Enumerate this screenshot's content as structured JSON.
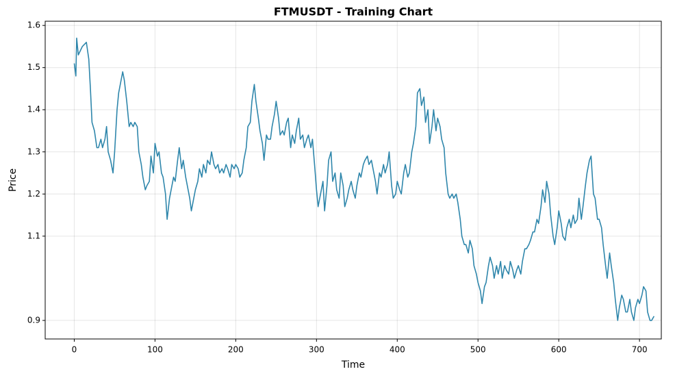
{
  "chart_data": {
    "type": "line",
    "title": "FTMUSDT - Training Chart",
    "x_label": "Time",
    "y_label": "Price",
    "color": "#2e86ab",
    "grid": true,
    "xlim": [
      -36,
      727
    ],
    "ylim": [
      0.856,
      1.61
    ],
    "xticks": [
      0,
      100,
      200,
      300,
      400,
      500,
      600,
      700
    ],
    "yticks": [
      0.9,
      1.1,
      1.2,
      1.3,
      1.4,
      1.5,
      1.6
    ],
    "x": [
      0,
      2,
      3,
      5,
      10,
      15,
      18,
      20,
      22,
      25,
      28,
      30,
      33,
      35,
      38,
      40,
      42,
      45,
      48,
      50,
      53,
      55,
      58,
      60,
      62,
      65,
      68,
      70,
      73,
      75,
      78,
      80,
      83,
      85,
      88,
      90,
      93,
      95,
      98,
      100,
      103,
      105,
      108,
      110,
      113,
      115,
      118,
      120,
      123,
      125,
      128,
      130,
      133,
      135,
      138,
      140,
      143,
      145,
      148,
      150,
      153,
      155,
      158,
      160,
      163,
      165,
      168,
      170,
      173,
      175,
      178,
      180,
      183,
      185,
      188,
      190,
      193,
      195,
      198,
      200,
      203,
      205,
      208,
      210,
      213,
      215,
      218,
      220,
      223,
      225,
      228,
      230,
      233,
      235,
      238,
      240,
      243,
      245,
      248,
      250,
      253,
      255,
      258,
      260,
      263,
      265,
      268,
      270,
      273,
      275,
      278,
      280,
      283,
      285,
      288,
      290,
      293,
      295,
      298,
      300,
      302,
      305,
      308,
      310,
      313,
      315,
      318,
      320,
      323,
      325,
      328,
      330,
      333,
      335,
      338,
      340,
      343,
      345,
      348,
      350,
      353,
      355,
      358,
      360,
      363,
      365,
      368,
      370,
      373,
      375,
      378,
      380,
      383,
      385,
      388,
      390,
      393,
      395,
      398,
      400,
      403,
      405,
      408,
      410,
      413,
      415,
      418,
      420,
      423,
      425,
      428,
      430,
      433,
      435,
      438,
      440,
      443,
      445,
      448,
      450,
      453,
      455,
      458,
      460,
      463,
      465,
      468,
      470,
      473,
      475,
      478,
      480,
      483,
      485,
      488,
      490,
      493,
      495,
      498,
      500,
      503,
      505,
      508,
      510,
      513,
      515,
      518,
      520,
      523,
      525,
      528,
      530,
      533,
      535,
      538,
      540,
      543,
      545,
      548,
      550,
      553,
      555,
      558,
      560,
      563,
      565,
      568,
      570,
      573,
      575,
      578,
      580,
      583,
      585,
      588,
      590,
      593,
      595,
      598,
      600,
      603,
      605,
      608,
      610,
      613,
      615,
      618,
      620,
      623,
      625,
      628,
      630,
      633,
      635,
      638,
      640,
      643,
      645,
      648,
      650,
      653,
      655,
      658,
      660,
      663,
      665,
      668,
      670,
      673,
      675,
      678,
      680,
      683,
      685,
      688,
      690,
      693,
      695,
      698,
      700,
      703,
      705,
      708,
      710,
      713,
      715,
      718
    ],
    "values": [
      1.51,
      1.48,
      1.57,
      1.53,
      1.55,
      1.56,
      1.52,
      1.45,
      1.37,
      1.35,
      1.31,
      1.31,
      1.33,
      1.31,
      1.33,
      1.36,
      1.3,
      1.28,
      1.25,
      1.3,
      1.4,
      1.44,
      1.47,
      1.49,
      1.47,
      1.42,
      1.36,
      1.37,
      1.36,
      1.37,
      1.36,
      1.3,
      1.27,
      1.24,
      1.21,
      1.22,
      1.23,
      1.29,
      1.25,
      1.32,
      1.29,
      1.3,
      1.25,
      1.24,
      1.2,
      1.14,
      1.19,
      1.21,
      1.24,
      1.23,
      1.28,
      1.31,
      1.26,
      1.28,
      1.24,
      1.22,
      1.19,
      1.16,
      1.19,
      1.21,
      1.23,
      1.26,
      1.24,
      1.27,
      1.25,
      1.28,
      1.27,
      1.3,
      1.27,
      1.26,
      1.27,
      1.25,
      1.26,
      1.25,
      1.27,
      1.26,
      1.24,
      1.27,
      1.26,
      1.27,
      1.26,
      1.24,
      1.25,
      1.28,
      1.31,
      1.36,
      1.37,
      1.42,
      1.46,
      1.42,
      1.38,
      1.35,
      1.32,
      1.28,
      1.34,
      1.33,
      1.33,
      1.36,
      1.39,
      1.42,
      1.38,
      1.34,
      1.35,
      1.34,
      1.37,
      1.38,
      1.31,
      1.34,
      1.32,
      1.35,
      1.38,
      1.33,
      1.34,
      1.31,
      1.33,
      1.34,
      1.31,
      1.33,
      1.26,
      1.21,
      1.17,
      1.2,
      1.23,
      1.16,
      1.22,
      1.28,
      1.3,
      1.23,
      1.25,
      1.21,
      1.19,
      1.25,
      1.22,
      1.17,
      1.19,
      1.21,
      1.23,
      1.21,
      1.19,
      1.22,
      1.25,
      1.24,
      1.27,
      1.28,
      1.29,
      1.27,
      1.28,
      1.26,
      1.23,
      1.2,
      1.25,
      1.24,
      1.27,
      1.25,
      1.27,
      1.3,
      1.22,
      1.19,
      1.2,
      1.23,
      1.21,
      1.2,
      1.25,
      1.27,
      1.24,
      1.25,
      1.3,
      1.32,
      1.36,
      1.44,
      1.45,
      1.41,
      1.43,
      1.37,
      1.4,
      1.32,
      1.36,
      1.4,
      1.35,
      1.38,
      1.36,
      1.33,
      1.31,
      1.25,
      1.2,
      1.19,
      1.2,
      1.19,
      1.2,
      1.18,
      1.14,
      1.1,
      1.08,
      1.08,
      1.06,
      1.09,
      1.07,
      1.03,
      1.01,
      0.99,
      0.97,
      0.94,
      0.98,
      0.99,
      1.03,
      1.05,
      1.03,
      1.0,
      1.03,
      1.01,
      1.04,
      1.0,
      1.03,
      1.02,
      1.01,
      1.04,
      1.02,
      1.0,
      1.02,
      1.03,
      1.01,
      1.04,
      1.07,
      1.07,
      1.08,
      1.09,
      1.11,
      1.11,
      1.14,
      1.13,
      1.17,
      1.21,
      1.18,
      1.23,
      1.2,
      1.15,
      1.1,
      1.08,
      1.12,
      1.16,
      1.13,
      1.1,
      1.09,
      1.12,
      1.14,
      1.12,
      1.15,
      1.13,
      1.14,
      1.19,
      1.14,
      1.17,
      1.22,
      1.25,
      1.28,
      1.29,
      1.2,
      1.19,
      1.14,
      1.14,
      1.12,
      1.08,
      1.03,
      1.0,
      1.06,
      1.03,
      0.99,
      0.95,
      0.9,
      0.93,
      0.96,
      0.95,
      0.92,
      0.92,
      0.95,
      0.92,
      0.9,
      0.93,
      0.95,
      0.94,
      0.96,
      0.98,
      0.97,
      0.92,
      0.9,
      0.9,
      0.91
    ]
  }
}
